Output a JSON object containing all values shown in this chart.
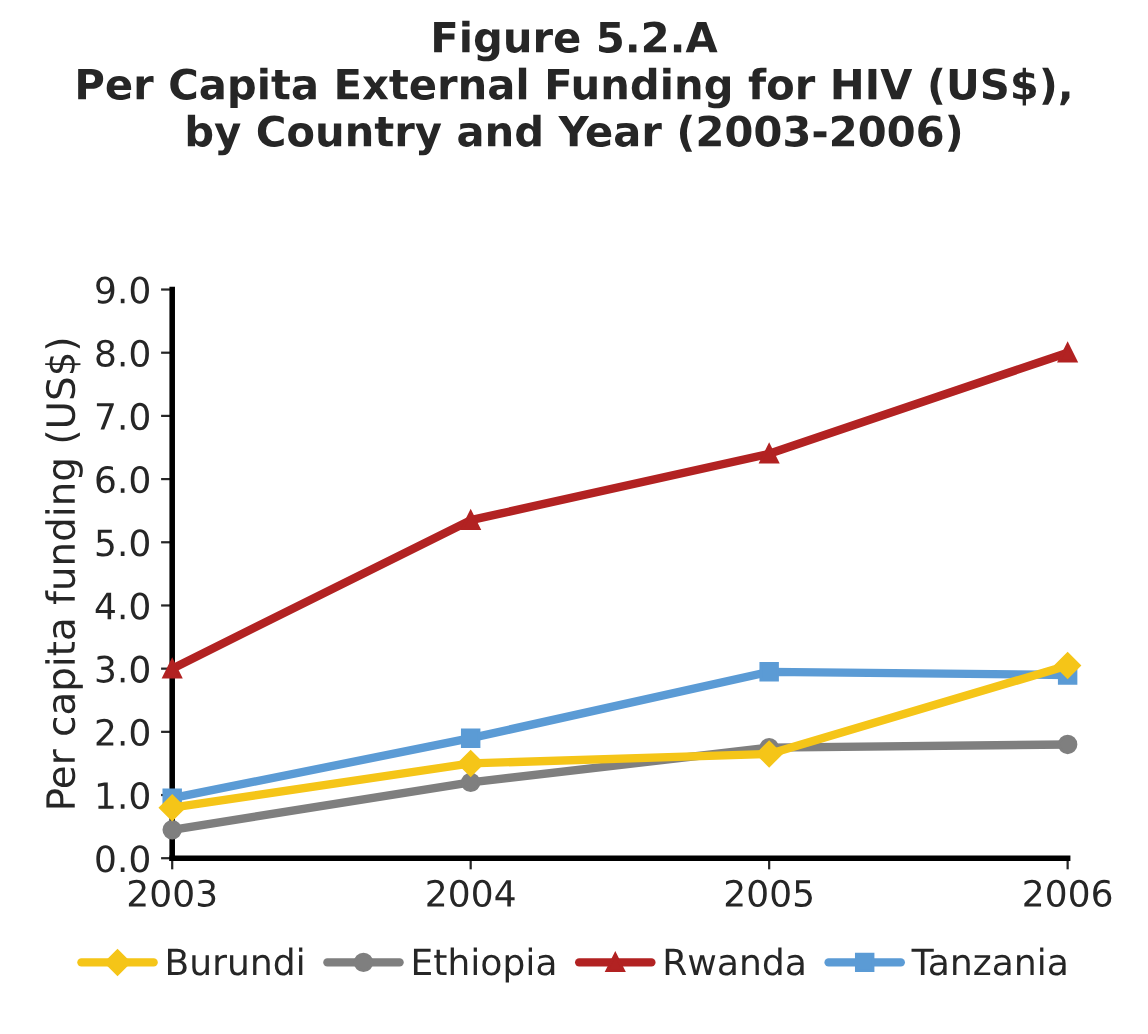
{
  "chart_data": {
    "type": "line",
    "title": "Figure 5.2.A\nPer Capita External Funding for HIV (US$),\nby Country and Year (2003-2006)",
    "ylabel": "Per capita funding (US$)",
    "categories": [
      "2003",
      "2004",
      "2005",
      "2006"
    ],
    "series": [
      {
        "name": "Burundi",
        "color": "#f5c518",
        "marker": "diamond",
        "values": [
          0.8,
          1.5,
          1.65,
          3.05
        ]
      },
      {
        "name": "Ethiopia",
        "color": "#7f7f7f",
        "marker": "circle",
        "values": [
          0.45,
          1.2,
          1.75,
          1.8
        ]
      },
      {
        "name": "Rwanda",
        "color": "#b22222",
        "marker": "triangle",
        "values": [
          3.0,
          5.35,
          6.4,
          8.0
        ]
      },
      {
        "name": "Tanzania",
        "color": "#5b9bd5",
        "marker": "square",
        "values": [
          0.95,
          1.9,
          2.95,
          2.9
        ]
      }
    ],
    "ylim": [
      0,
      9
    ],
    "yticks": [
      {
        "value": 0,
        "label": "0.0"
      },
      {
        "value": 1,
        "label": "1.0"
      },
      {
        "value": 2,
        "label": "2.0"
      },
      {
        "value": 3,
        "label": "3.0"
      },
      {
        "value": 4,
        "label": "4.0"
      },
      {
        "value": 5,
        "label": "5.0"
      },
      {
        "value": 6,
        "label": "6.0"
      },
      {
        "value": 7,
        "label": "7.0"
      },
      {
        "value": 8,
        "label": "8.0"
      },
      {
        "value": 9,
        "label": "9.0"
      }
    ],
    "grid": false,
    "legend": "bottom"
  }
}
